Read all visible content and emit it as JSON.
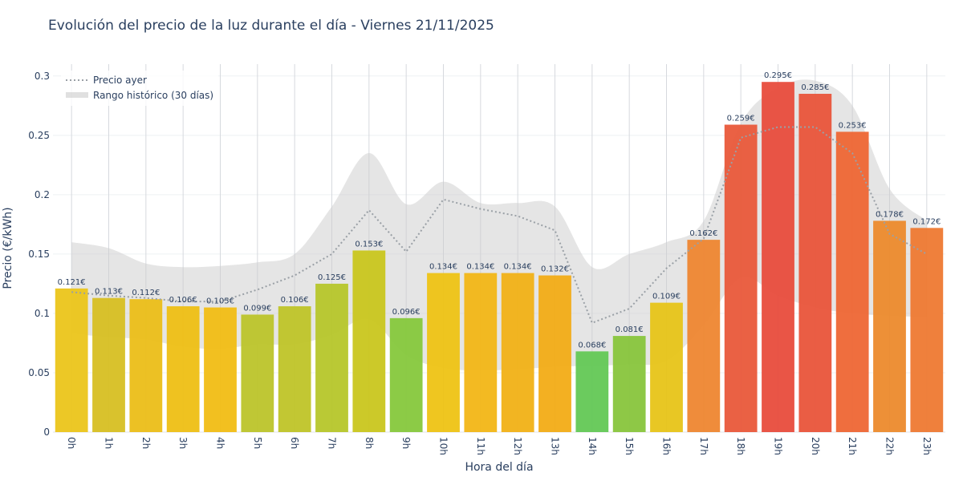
{
  "chart_data": {
    "type": "bar",
    "title": "Evolución del precio de la luz durante el día - Viernes 21/11/2025",
    "xlabel": "Hora del día",
    "ylabel": "Precio (€/kWh)",
    "ylim": [
      0,
      0.31
    ],
    "yticks": [
      0,
      0.05,
      0.1,
      0.15,
      0.2,
      0.25,
      0.3
    ],
    "ytick_labels": [
      "0",
      "0.05",
      "0.1",
      "0.15",
      "0.2",
      "0.25",
      "0.3"
    ],
    "categories": [
      "0h",
      "1h",
      "2h",
      "3h",
      "4h",
      "5h",
      "6h",
      "7h",
      "8h",
      "9h",
      "10h",
      "11h",
      "12h",
      "13h",
      "14h",
      "15h",
      "16h",
      "17h",
      "18h",
      "19h",
      "20h",
      "21h",
      "22h",
      "23h"
    ],
    "values": [
      0.121,
      0.113,
      0.112,
      0.106,
      0.105,
      0.099,
      0.106,
      0.125,
      0.153,
      0.096,
      0.134,
      0.134,
      0.134,
      0.132,
      0.068,
      0.081,
      0.109,
      0.162,
      0.259,
      0.295,
      0.285,
      0.253,
      0.178,
      0.172
    ],
    "data_labels": [
      "0.121€",
      "0.113€",
      "0.112€",
      "0.106€",
      "0.105€",
      "0.099€",
      "0.106€",
      "0.125€",
      "0.153€",
      "0.096€",
      "0.134€",
      "0.134€",
      "0.134€",
      "0.132€",
      "0.068€",
      "0.081€",
      "0.109€",
      "0.162€",
      "0.259€",
      "0.295€",
      "0.285€",
      "0.253€",
      "0.178€",
      "0.172€"
    ],
    "bar_colors": [
      "#ebc51a",
      "#d7bf22",
      "#ebbe18",
      "#eebf14",
      "#f1bd14",
      "#bcc42a",
      "#bfc428",
      "#b6c62a",
      "#c9c61e",
      "#86c83c",
      "#eec314",
      "#f2b616",
      "#f1b116",
      "#f2ac16",
      "#63c855",
      "#88c53c",
      "#e7c418",
      "#ee8630",
      "#e9593a",
      "#e84c3c",
      "#e9543a",
      "#ee6634",
      "#ec8a2c",
      "#ee7932"
    ],
    "series": [
      {
        "name": "Precio ayer",
        "style": "dotted",
        "color": "#9aa0a6",
        "values": [
          0.118,
          0.115,
          0.113,
          0.11,
          0.11,
          0.12,
          0.132,
          0.15,
          0.187,
          0.152,
          0.196,
          0.188,
          0.182,
          0.17,
          0.092,
          0.104,
          0.138,
          0.163,
          0.248,
          0.257,
          0.257,
          0.235,
          0.167,
          0.15
        ]
      },
      {
        "name": "Rango histórico (30 días)",
        "style": "band",
        "color": "#cccccc",
        "upper": [
          0.16,
          0.155,
          0.142,
          0.139,
          0.14,
          0.143,
          0.15,
          0.19,
          0.235,
          0.192,
          0.211,
          0.193,
          0.193,
          0.19,
          0.139,
          0.15,
          0.16,
          0.178,
          0.26,
          0.29,
          0.296,
          0.275,
          0.205,
          0.178
        ],
        "lower": [
          0.083,
          0.08,
          0.078,
          0.072,
          0.07,
          0.074,
          0.074,
          0.082,
          0.095,
          0.065,
          0.054,
          0.052,
          0.053,
          0.055,
          0.056,
          0.057,
          0.06,
          0.09,
          0.13,
          0.115,
          0.105,
          0.1,
          0.098,
          0.097
        ]
      }
    ],
    "legend_position": "top-left",
    "grid": true
  }
}
